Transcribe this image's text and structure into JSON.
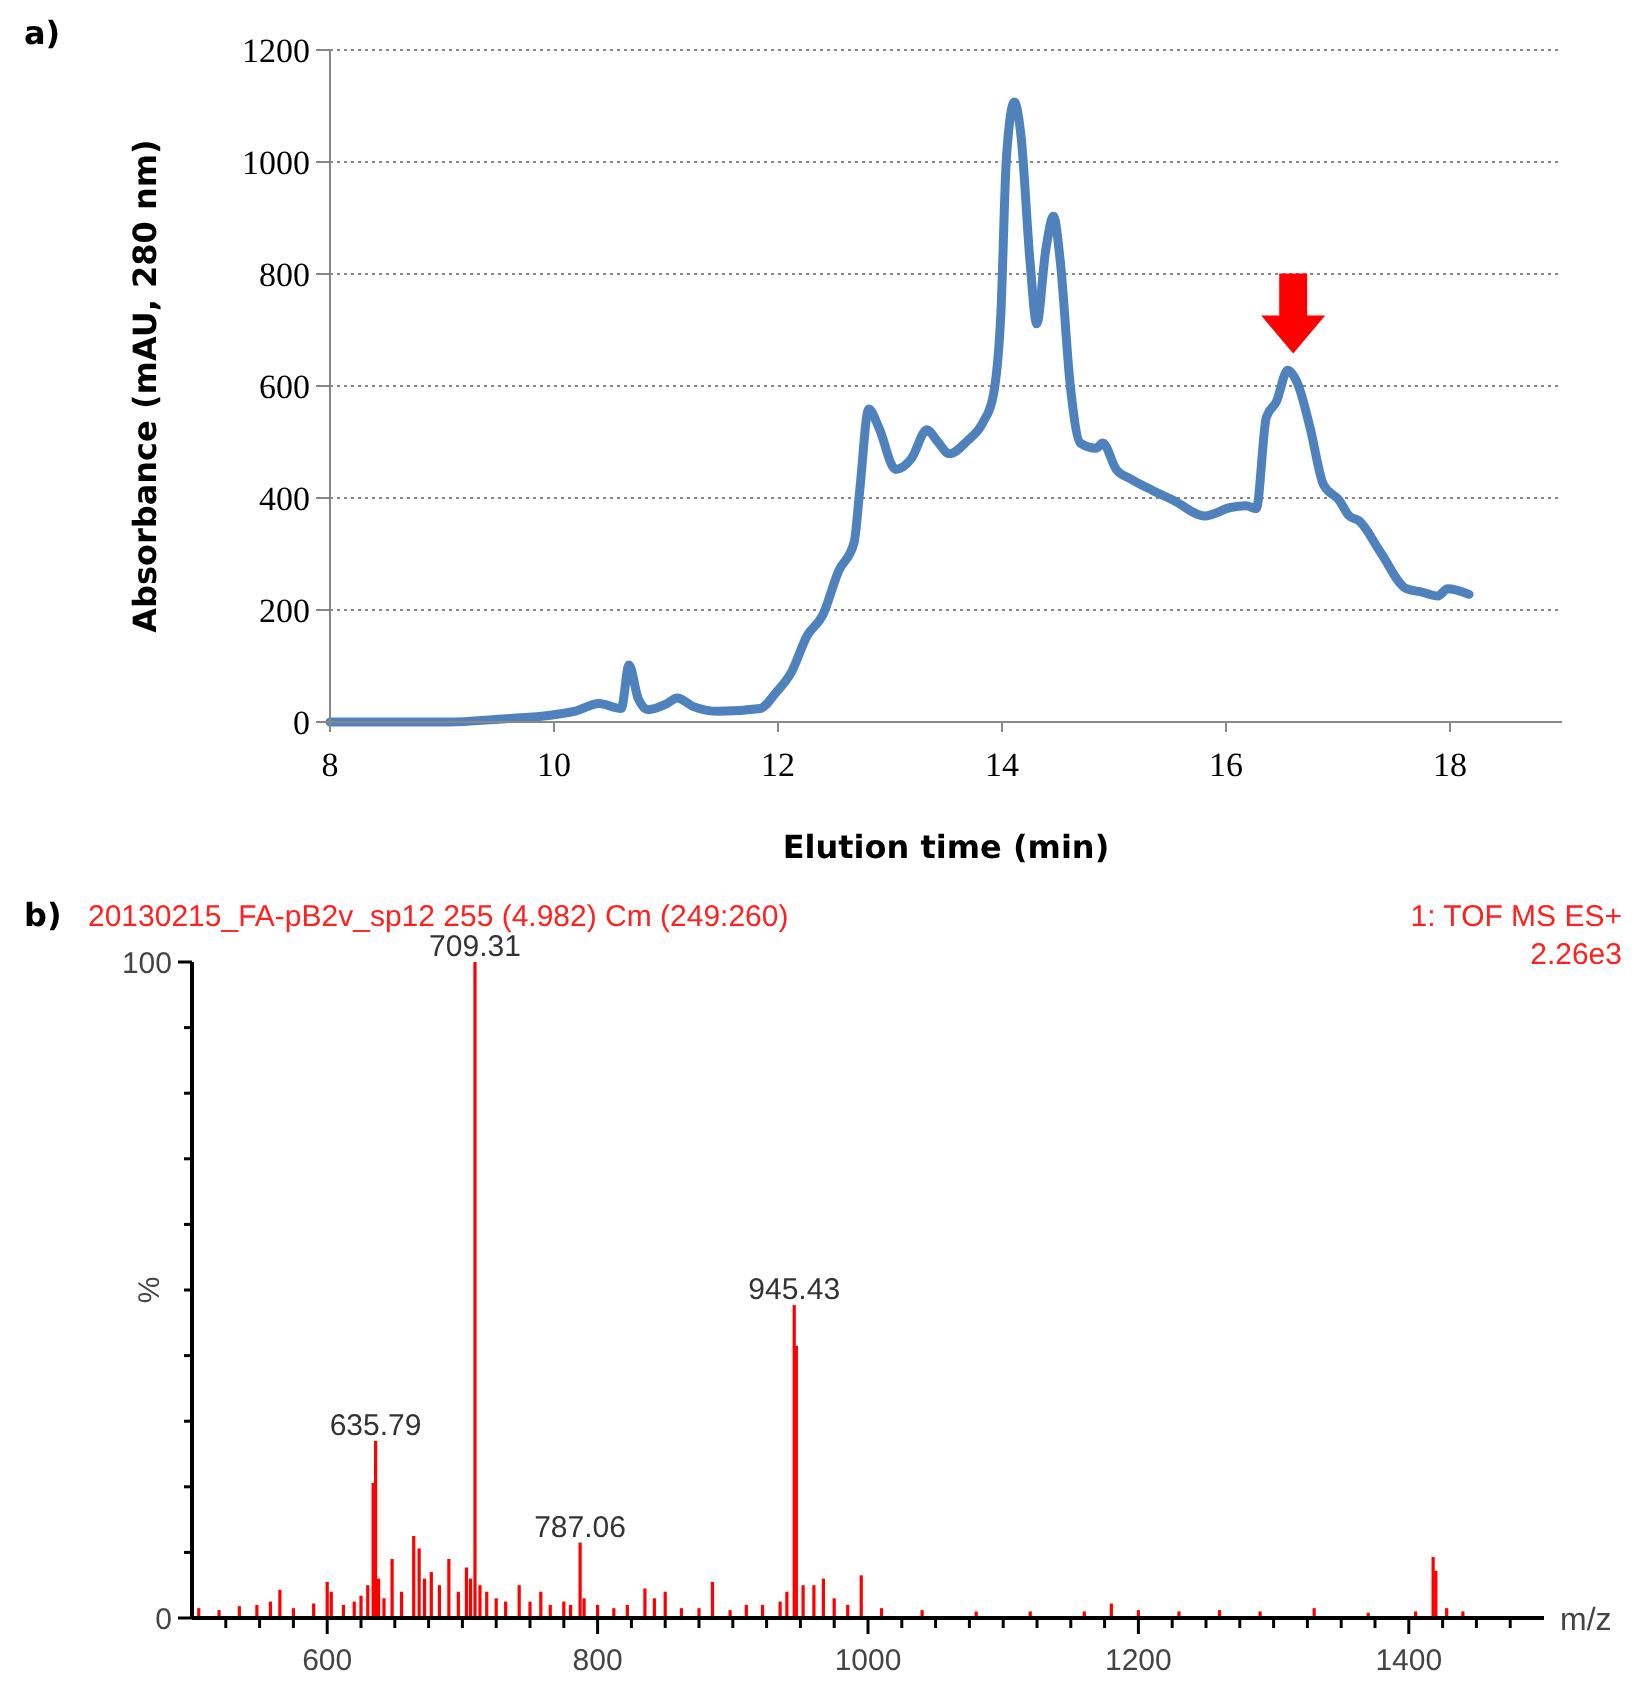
{
  "chart_data": [
    {
      "type": "line",
      "title": "a)",
      "xlabel": "Elution time (min)",
      "ylabel": "Absorbance (mAU, 280 nm)",
      "xlim": [
        8,
        19
      ],
      "xticks": [
        8,
        10,
        12,
        14,
        16,
        18
      ],
      "ylim": [
        0,
        1200
      ],
      "yticks": [
        0,
        200,
        400,
        600,
        800,
        1000,
        1200
      ],
      "grid": "y",
      "line_style": "solid",
      "marker": "none",
      "series": [
        {
          "color": "#4f81bd",
          "x": [
            8,
            9.06,
            9.5,
            10,
            10.2,
            10.4,
            10.6,
            10.67,
            10.75,
            10.84,
            11,
            11.1,
            11.24,
            11.47,
            11.84,
            11.98,
            12.12,
            12.26,
            12.4,
            12.54,
            12.68,
            12.73,
            12.81,
            12.9,
            13.05,
            13.19,
            13.33,
            13.42,
            13.53,
            13.69,
            13.83,
            13.92,
            13.99,
            14.04,
            14.11,
            14.17,
            14.25,
            14.31,
            14.39,
            14.46,
            14.52,
            14.61,
            14.7,
            14.84,
            14.9,
            15.02,
            15.16,
            15.34,
            15.53,
            15.81,
            16.04,
            16.18,
            16.27,
            16.36,
            16.45,
            16.55,
            16.64,
            16.75,
            16.87,
            17.01,
            17.1,
            17.19,
            17.38,
            17.61,
            17.75,
            17.89,
            17.98,
            18.17
          ],
          "values": [
            0,
            0,
            5,
            13,
            20,
            33,
            24,
            102,
            43,
            22,
            32,
            43,
            28,
            19,
            24,
            52,
            89,
            154,
            191,
            269,
            321,
            414,
            559,
            526,
            451,
            470,
            522,
            502,
            479,
            502,
            535,
            581,
            730,
            1009,
            1107,
            1046,
            823,
            711,
            842,
            903,
            823,
            600,
            498,
            489,
            498,
            451,
            433,
            414,
            396,
            368,
            383,
            386,
            381,
            544,
            572,
            628,
            604,
            526,
            424,
            396,
            368,
            359,
            303,
            238,
            232,
            225,
            238,
            228
          ]
        }
      ]
    },
    {
      "type": "bar",
      "title": "b)",
      "subtitle": "20130215_FA-pB2v_sp12 255 (4.982) Cm (249:260)",
      "xlabel": "m/z",
      "ylabel": "%",
      "xlim": [
        500,
        1500
      ],
      "xticks": [
        {
          "value": 525,
          "label": null
        },
        {
          "value": 550,
          "label": null
        },
        {
          "value": 575,
          "label": null
        },
        600,
        {
          "value": 625,
          "label": null
        },
        {
          "value": 650,
          "label": null
        },
        {
          "value": 675,
          "label": null
        },
        {
          "value": 700,
          "label": null
        },
        {
          "value": 725,
          "label": null
        },
        {
          "value": 750,
          "label": null
        },
        {
          "value": 775,
          "label": null
        },
        800,
        {
          "value": 825,
          "label": null
        },
        {
          "value": 850,
          "label": null
        },
        {
          "value": 875,
          "label": null
        },
        {
          "value": 900,
          "label": null
        },
        {
          "value": 925,
          "label": null
        },
        {
          "value": 950,
          "label": null
        },
        {
          "value": 975,
          "label": null
        },
        1000,
        {
          "value": 1025,
          "label": null
        },
        {
          "value": 1050,
          "label": null
        },
        {
          "value": 1075,
          "label": null
        },
        {
          "value": 1100,
          "label": null
        },
        {
          "value": 1125,
          "label": null
        },
        {
          "value": 1150,
          "label": null
        },
        {
          "value": 1175,
          "label": null
        },
        1200,
        {
          "value": 1225,
          "label": null
        },
        {
          "value": 1250,
          "label": null
        },
        {
          "value": 1275,
          "label": null
        },
        {
          "value": 1300,
          "label": null
        },
        {
          "value": 1325,
          "label": null
        },
        {
          "value": 1350,
          "label": null
        },
        {
          "value": 1375,
          "label": null
        },
        1400,
        {
          "value": 1425,
          "label": null
        },
        {
          "value": 1450,
          "label": null
        },
        {
          "value": 1475,
          "label": null
        }
      ],
      "ylim": [
        0,
        100
      ],
      "yticks": [
        0,
        {
          "value": 10,
          "label": null
        },
        {
          "value": 20,
          "label": null
        },
        {
          "value": 30,
          "label": null
        },
        {
          "value": 40,
          "label": null
        },
        {
          "value": 50,
          "label": null
        },
        {
          "value": 60,
          "label": null
        },
        {
          "value": 70,
          "label": null
        },
        {
          "value": 80,
          "label": null
        },
        {
          "value": 90,
          "label": null
        },
        100
      ],
      "annotations": [
        "1: TOF MS ES+",
        "2.26e3",
        {
          "text": "635.79",
          "x": 635.79,
          "y": 27
        },
        {
          "text": "709.31",
          "x": 709.31,
          "y": 100
        },
        {
          "text": "787.06",
          "x": 787.06,
          "y": 11.5
        },
        {
          "text": "945.43",
          "x": 945.43,
          "y": 47.7
        }
      ],
      "series": [
        {
          "color": "#ff0000",
          "x": [
            505,
            520,
            535,
            548,
            558,
            565,
            575,
            590,
            600,
            603,
            612,
            620,
            625,
            630,
            634,
            635.79,
            638,
            642,
            648,
            655,
            664,
            668,
            672,
            677,
            683,
            690,
            697,
            703,
            706,
            709.31,
            713,
            718,
            725,
            732,
            742,
            750,
            758,
            765,
            775,
            780,
            787.06,
            790,
            800,
            812,
            822,
            835,
            842,
            850,
            862,
            875,
            885,
            898,
            910,
            922,
            935,
            940,
            945.43,
            947,
            952,
            960,
            967,
            975,
            985,
            995,
            1010,
            1040,
            1080,
            1120,
            1160,
            1180,
            1200,
            1230,
            1260,
            1290,
            1330,
            1370,
            1405,
            1418,
            1420,
            1428,
            1440
          ],
          "values": [
            1.5,
            1.2,
            1.8,
            2,
            2.5,
            4.3,
            1.5,
            2.2,
            5.5,
            4,
            2,
            2.5,
            3.4,
            5,
            20.6,
            27,
            6,
            3,
            9,
            4,
            12.5,
            10.6,
            6,
            7,
            5,
            9,
            4,
            7.7,
            6,
            100,
            5,
            4,
            3,
            2.5,
            5,
            2.5,
            4,
            2,
            2.5,
            2,
            11.5,
            3,
            2,
            1.5,
            2,
            4.5,
            3,
            4,
            1.5,
            1.5,
            5.5,
            1.2,
            2,
            2,
            2.5,
            4,
            47.7,
            41.5,
            5,
            5,
            6,
            3,
            2,
            6.5,
            1.5,
            1.2,
            1,
            1,
            1,
            2.2,
            1.2,
            1,
            1.2,
            1,
            1.5,
            0.8,
            1,
            9.3,
            7.2,
            1.5,
            1
          ]
        }
      ]
    }
  ]
}
